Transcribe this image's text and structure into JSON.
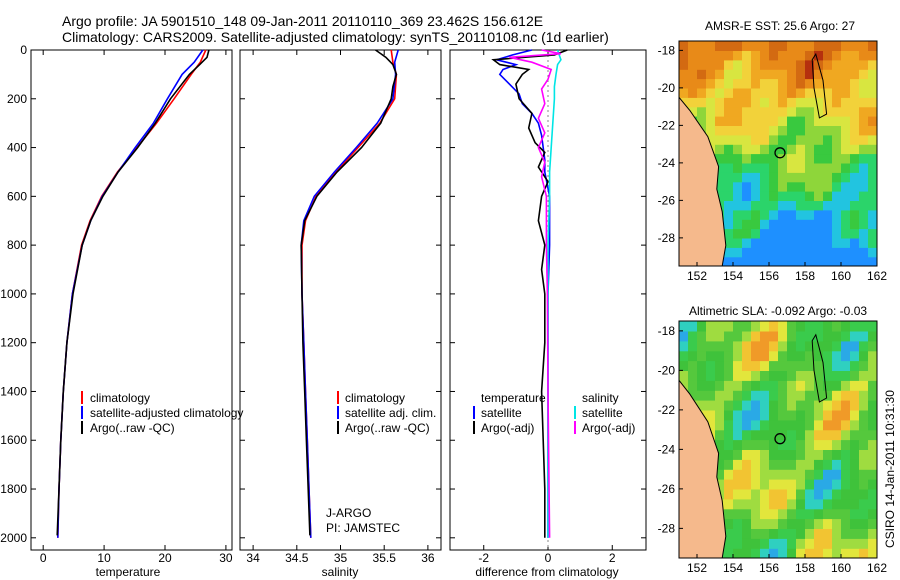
{
  "header": {
    "line1": "Argo profile: JA 5901510_148 09-Jan-2011 20110110_369 23.462S 156.612E",
    "line2": "Climatology: CARS2009. Satellite-adjusted climatology: synTS_20110108.nc (1d earlier)"
  },
  "footer": {
    "stamp": "CSIRO 14-Jan-2011 10:31:30"
  },
  "colors": {
    "red": "#ff0000",
    "blue": "#0000ff",
    "black": "#000000",
    "cyan": "#00e5e5",
    "magenta": "#ff00ff",
    "land": "#f5b98c"
  },
  "chart_data": [
    {
      "type": "line",
      "id": "temperature",
      "xlabel": "temperature",
      "ylabel": "",
      "xlim": [
        -2,
        31
      ],
      "ylim": [
        0,
        2050
      ],
      "y_reversed": true,
      "xticks": [
        0,
        10,
        20,
        30
      ],
      "yticks": [
        0,
        200,
        400,
        600,
        800,
        1000,
        1200,
        1400,
        1600,
        1800,
        2000
      ],
      "legend": [
        "climatology",
        "satellite-adjusted climatology",
        "Argo(..raw -QC)"
      ],
      "series": [
        {
          "name": "climatology",
          "color": "red",
          "depth": [
            0,
            50,
            100,
            200,
            300,
            400,
            500,
            600,
            700,
            800,
            1000,
            1200,
            1400,
            1600,
            1800,
            2000
          ],
          "values": [
            26.7,
            25.8,
            24.3,
            21.5,
            18.6,
            15.4,
            12.2,
            9.6,
            7.7,
            6.3,
            4.8,
            3.9,
            3.3,
            2.9,
            2.6,
            2.4
          ]
        },
        {
          "name": "satellite-adjusted climatology",
          "color": "blue",
          "depth": [
            0,
            50,
            100,
            200,
            300,
            400,
            500,
            600,
            700,
            800,
            1000,
            1200,
            1400,
            1600,
            1800,
            2000
          ],
          "values": [
            26.2,
            24.8,
            22.8,
            20.4,
            18.1,
            15.1,
            12.3,
            9.7,
            7.8,
            6.4,
            4.8,
            3.9,
            3.3,
            2.9,
            2.6,
            2.4
          ]
        },
        {
          "name": "Argo(..raw -QC)",
          "color": "black",
          "depth": [
            0,
            30,
            60,
            100,
            200,
            300,
            400,
            500,
            600,
            700,
            800,
            1000,
            1200,
            1400,
            1600,
            1800,
            1990
          ],
          "values": [
            27.2,
            26.9,
            25.7,
            24.0,
            20.9,
            18.4,
            15.5,
            12.3,
            9.8,
            7.8,
            6.4,
            4.9,
            3.9,
            3.3,
            2.9,
            2.6,
            2.3
          ]
        }
      ]
    },
    {
      "type": "line",
      "id": "salinity",
      "xlabel": "salinity",
      "xlim": [
        33.85,
        36.15
      ],
      "ylim": [
        0,
        2050
      ],
      "y_reversed": true,
      "xticks": [
        34,
        34.5,
        35,
        35.5,
        36
      ],
      "legend": [
        "climatology",
        "satellite adj. clim.",
        "Argo(..raw -QC)"
      ],
      "annotation": [
        "J-ARGO",
        "PI: JAMSTEC"
      ],
      "series": [
        {
          "name": "climatology",
          "color": "red",
          "depth": [
            0,
            50,
            100,
            200,
            300,
            400,
            500,
            600,
            700,
            800,
            1000,
            1200,
            1400,
            1600,
            1800,
            2000
          ],
          "values": [
            35.58,
            35.6,
            35.64,
            35.62,
            35.45,
            35.2,
            34.95,
            34.72,
            34.6,
            34.56,
            34.56,
            34.58,
            34.6,
            34.62,
            34.64,
            34.66
          ]
        },
        {
          "name": "satellite adj. clim.",
          "color": "blue",
          "depth": [
            0,
            50,
            100,
            200,
            300,
            400,
            500,
            600,
            700,
            800,
            1000,
            1200,
            1400,
            1600,
            1800,
            2000
          ],
          "values": [
            35.66,
            35.62,
            35.63,
            35.6,
            35.42,
            35.18,
            34.93,
            34.7,
            34.58,
            34.55,
            34.56,
            34.58,
            34.6,
            34.62,
            34.64,
            34.66
          ]
        },
        {
          "name": "Argo(..raw -QC)",
          "color": "black",
          "depth": [
            0,
            30,
            60,
            100,
            150,
            200,
            300,
            400,
            500,
            600,
            700,
            800,
            1000,
            1200,
            1400,
            1600,
            1800,
            1990
          ],
          "values": [
            35.4,
            35.52,
            35.6,
            35.64,
            35.6,
            35.58,
            35.46,
            35.24,
            34.96,
            34.73,
            34.59,
            34.55,
            34.56,
            34.57,
            34.59,
            34.61,
            34.63,
            34.65
          ]
        }
      ]
    },
    {
      "type": "line",
      "id": "difference",
      "xlabel": "difference from climatology",
      "xlim": [
        -3.05,
        3.05
      ],
      "ylim": [
        0,
        2050
      ],
      "y_reversed": true,
      "xticks": [
        -2,
        0,
        2
      ],
      "legend_headers": [
        "temperature",
        "salinity"
      ],
      "legend": [
        "satellite",
        "Argo(-adj)",
        "satellite",
        "Argo(-adj)"
      ],
      "series": [
        {
          "name": "temperature satellite",
          "color": "blue",
          "depth": [
            0,
            20,
            40,
            60,
            80,
            100,
            140,
            180,
            220,
            260,
            300,
            350,
            400,
            450,
            500,
            600,
            700,
            800,
            1000,
            1200,
            1600,
            2000
          ],
          "values": [
            -0.5,
            -1.1,
            -1.6,
            -1.0,
            -1.4,
            -1.5,
            -1.2,
            -0.9,
            -0.8,
            -0.5,
            -0.3,
            -0.2,
            -0.15,
            -0.1,
            -0.1,
            0.05,
            0.05,
            0.05,
            0.0,
            0.0,
            0.0,
            0.0
          ]
        },
        {
          "name": "temperature Argo(-adj)",
          "color": "black",
          "depth": [
            0,
            20,
            40,
            60,
            80,
            100,
            140,
            200,
            260,
            320,
            380,
            420,
            480,
            540,
            600,
            700,
            800,
            900,
            1000,
            1200,
            1400,
            1600,
            1800,
            2000
          ],
          "values": [
            0.6,
            0.2,
            -1.7,
            -1.5,
            -0.6,
            -0.8,
            -1.0,
            -0.9,
            -0.5,
            -0.6,
            -0.4,
            -0.1,
            -0.3,
            0.0,
            -0.2,
            -0.3,
            -0.1,
            -0.2,
            -0.1,
            -0.1,
            -0.2,
            -0.15,
            -0.1,
            -0.1
          ]
        },
        {
          "name": "salinity satellite",
          "color": "cyan",
          "depth": [
            0,
            20,
            40,
            60,
            100,
            150,
            200,
            300,
            400,
            500,
            600,
            800,
            1000,
            1400,
            2000
          ],
          "values": [
            0.3,
            0.35,
            0.4,
            0.3,
            0.25,
            0.2,
            0.2,
            0.15,
            0.1,
            0.05,
            0.05,
            0.0,
            0.0,
            0.0,
            0.0
          ]
        },
        {
          "name": "salinity Argo(-adj)",
          "color": "magenta",
          "depth": [
            0,
            15,
            30,
            50,
            80,
            120,
            160,
            220,
            280,
            340,
            400,
            460,
            520,
            600,
            700,
            800,
            1000,
            1400,
            2000
          ],
          "values": [
            -0.2,
            0.4,
            -1.2,
            -0.5,
            0.1,
            0.0,
            -0.2,
            -0.1,
            -0.3,
            -0.1,
            -0.3,
            -0.1,
            -0.2,
            -0.05,
            -0.05,
            -0.05,
            -0.02,
            0.0,
            0.05
          ]
        }
      ]
    },
    {
      "type": "heatmap",
      "id": "sst-map",
      "title": "AMSR-E SST: 25.6  Argo: 27",
      "xlim": [
        151,
        162
      ],
      "ylim": [
        -29.5,
        -17.5
      ],
      "xticks": [
        152,
        154,
        156,
        158,
        160,
        162
      ],
      "xtick_labels": [
        "152",
        "154",
        "156",
        "158",
        "160",
        "162"
      ],
      "yticks": [
        -18,
        -20,
        -22,
        -24,
        -26,
        -28
      ],
      "ytick_labels": [
        "-18",
        "-20",
        "-22",
        "-24",
        "-26",
        "-28"
      ],
      "float_position": [
        156.612,
        -23.462
      ]
    },
    {
      "type": "heatmap",
      "id": "sla-map",
      "title": "Altimetric SLA: -0.092  Argo: -0.03",
      "xlim": [
        151,
        162
      ],
      "ylim": [
        -29.5,
        -17.5
      ],
      "xticks": [
        152,
        154,
        156,
        158,
        160,
        162
      ],
      "xtick_labels": [
        "152",
        "154",
        "156",
        "158",
        "160",
        "162"
      ],
      "yticks": [
        -18,
        -20,
        -22,
        -24,
        -26,
        -28
      ],
      "ytick_labels": [
        "-18",
        "-20",
        "-22",
        "-24",
        "-26",
        "-28"
      ],
      "float_position": [
        156.612,
        -23.462
      ]
    }
  ]
}
